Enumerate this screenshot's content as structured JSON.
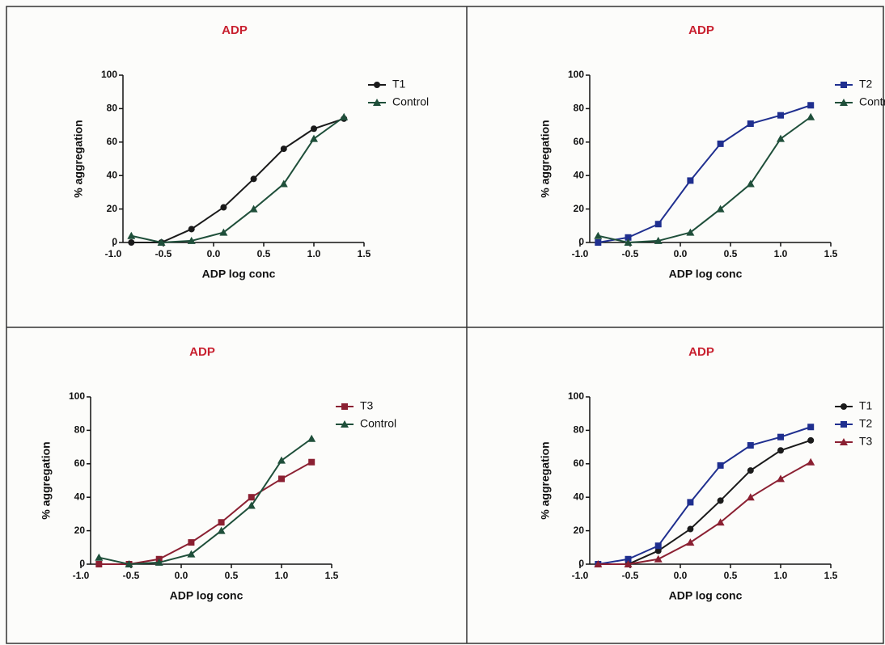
{
  "chart_data": [
    {
      "type": "line",
      "title": "ADP",
      "xlabel": "ADP log conc",
      "ylabel": "% aggregation",
      "x": [
        -0.82,
        -0.52,
        -0.22,
        0.1,
        0.4,
        0.7,
        1.0,
        1.3
      ],
      "series": [
        {
          "name": "T1",
          "color": "#1a1a1a",
          "marker": "circle",
          "values": [
            0,
            0,
            8,
            21,
            38,
            56,
            68,
            74
          ]
        },
        {
          "name": "Control",
          "color": "#1f4f3a",
          "marker": "triangle",
          "values": [
            4,
            0,
            1,
            6,
            20,
            35,
            62,
            75
          ]
        }
      ],
      "xlim": [
        -1.0,
        1.5
      ],
      "xticks": [
        {
          "value": -1.0,
          "label": "-1.0"
        },
        -0.5,
        {
          "value": 0.0,
          "label": "0.0"
        },
        0.5,
        {
          "value": 1.0,
          "label": "1.0"
        },
        1.5
      ],
      "ylim": [
        0,
        100
      ],
      "yticks": [
        0,
        20,
        40,
        60,
        80,
        100
      ],
      "legend": "top-right"
    },
    {
      "type": "line",
      "title": "ADP",
      "xlabel": "ADP log conc",
      "ylabel": "% aggregation",
      "x": [
        -0.82,
        -0.52,
        -0.22,
        0.1,
        0.4,
        0.7,
        1.0,
        1.3
      ],
      "series": [
        {
          "name": "T2",
          "color": "#1f2f8f",
          "marker": "square",
          "values": [
            0,
            3,
            11,
            37,
            59,
            71,
            76,
            82
          ]
        },
        {
          "name": "Control",
          "color": "#1f4f3a",
          "marker": "triangle",
          "values": [
            4,
            0,
            1,
            6,
            20,
            35,
            62,
            75
          ]
        }
      ],
      "xlim": [
        -1.0,
        1.5
      ],
      "xticks": [
        {
          "value": -1.0,
          "label": "-1.0"
        },
        -0.5,
        {
          "value": 0.0,
          "label": "0.0"
        },
        0.5,
        {
          "value": 1.0,
          "label": "1.0"
        },
        1.5
      ],
      "ylim": [
        0,
        100
      ],
      "yticks": [
        0,
        20,
        40,
        60,
        80,
        100
      ],
      "legend": "top-right"
    },
    {
      "type": "line",
      "title": "ADP",
      "xlabel": "ADP log conc",
      "ylabel": "% aggregation",
      "x": [
        -0.82,
        -0.52,
        -0.22,
        0.1,
        0.4,
        0.7,
        1.0,
        1.3
      ],
      "series": [
        {
          "name": "T3",
          "color": "#8b2032",
          "marker": "square",
          "values": [
            0,
            0,
            3,
            13,
            25,
            40,
            51,
            61
          ]
        },
        {
          "name": "Control",
          "color": "#1f4f3a",
          "marker": "triangle",
          "values": [
            4,
            0,
            1,
            6,
            20,
            35,
            62,
            75
          ]
        }
      ],
      "xlim": [
        -1.0,
        1.5
      ],
      "xticks": [
        {
          "value": -1.0,
          "label": "-1.0"
        },
        -0.5,
        {
          "value": 0.0,
          "label": "0.0"
        },
        0.5,
        {
          "value": 1.0,
          "label": "1.0"
        },
        1.5
      ],
      "ylim": [
        0,
        100
      ],
      "yticks": [
        0,
        20,
        40,
        60,
        80,
        100
      ],
      "legend": "top-right"
    },
    {
      "type": "line",
      "title": "ADP",
      "xlabel": "ADP log conc",
      "ylabel": "% aggregation",
      "x": [
        -0.82,
        -0.52,
        -0.22,
        0.1,
        0.4,
        0.7,
        1.0,
        1.3
      ],
      "series": [
        {
          "name": "T1",
          "color": "#1a1a1a",
          "marker": "circle",
          "values": [
            0,
            0,
            8,
            21,
            38,
            56,
            68,
            74
          ]
        },
        {
          "name": "T2",
          "color": "#1f2f8f",
          "marker": "square",
          "values": [
            0,
            3,
            11,
            37,
            59,
            71,
            76,
            82
          ]
        },
        {
          "name": "T3",
          "color": "#8b2032",
          "marker": "triangle",
          "values": [
            0,
            0,
            3,
            13,
            25,
            40,
            51,
            61
          ]
        }
      ],
      "xlim": [
        -1.0,
        1.5
      ],
      "xticks": [
        {
          "value": -1.0,
          "label": "-1.0"
        },
        -0.5,
        {
          "value": 0.0,
          "label": "0.0"
        },
        0.5,
        {
          "value": 1.0,
          "label": "1.0"
        },
        1.5
      ],
      "ylim": [
        0,
        100
      ],
      "yticks": [
        0,
        20,
        40,
        60,
        80,
        100
      ],
      "legend": "top-right"
    }
  ]
}
